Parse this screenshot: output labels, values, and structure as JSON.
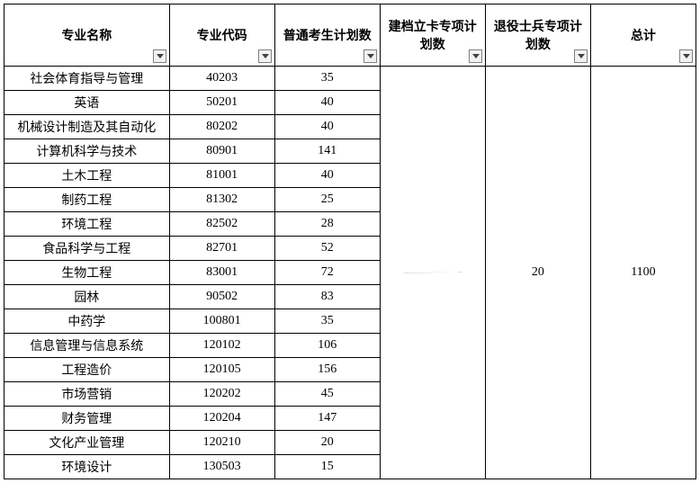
{
  "columns": [
    {
      "label": "专业名称"
    },
    {
      "label": "专业代码"
    },
    {
      "label": "普通考生计划数"
    },
    {
      "label": "建档立卡专项计划数"
    },
    {
      "label": "退役士兵专项计划数"
    },
    {
      "label": "总计"
    }
  ],
  "rows": [
    {
      "name": "社会体育指导与管理",
      "code": "40203",
      "plan": "35"
    },
    {
      "name": "英语",
      "code": "50201",
      "plan": "40"
    },
    {
      "name": "机械设计制造及其自动化",
      "code": "80202",
      "plan": "40"
    },
    {
      "name": "计算机科学与技术",
      "code": "80901",
      "plan": "141"
    },
    {
      "name": "土木工程",
      "code": "81001",
      "plan": "40"
    },
    {
      "name": "制药工程",
      "code": "81302",
      "plan": "25"
    },
    {
      "name": "环境工程",
      "code": "82502",
      "plan": "28"
    },
    {
      "name": "食品科学与工程",
      "code": "82701",
      "plan": "52"
    },
    {
      "name": "生物工程",
      "code": "83001",
      "plan": "72"
    },
    {
      "name": "园林",
      "code": "90502",
      "plan": "83"
    },
    {
      "name": "中药学",
      "code": "100801",
      "plan": "35"
    },
    {
      "name": "信息管理与信息系统",
      "code": "120102",
      "plan": "106"
    },
    {
      "name": "工程造价",
      "code": "120105",
      "plan": "156"
    },
    {
      "name": "市场营销",
      "code": "120202",
      "plan": "45"
    },
    {
      "name": "财务管理",
      "code": "120204",
      "plan": "147"
    },
    {
      "name": "文化产业管理",
      "code": "120210",
      "plan": "20"
    },
    {
      "name": "环境设计",
      "code": "130503",
      "plan": "15"
    }
  ],
  "merged": {
    "veteran_plan": "20",
    "total": "1100"
  },
  "style": {
    "border_color": "#000000",
    "background": "#ffffff",
    "header_fontsize": 14,
    "cell_fontsize": 14,
    "font_family": "SimSun"
  }
}
